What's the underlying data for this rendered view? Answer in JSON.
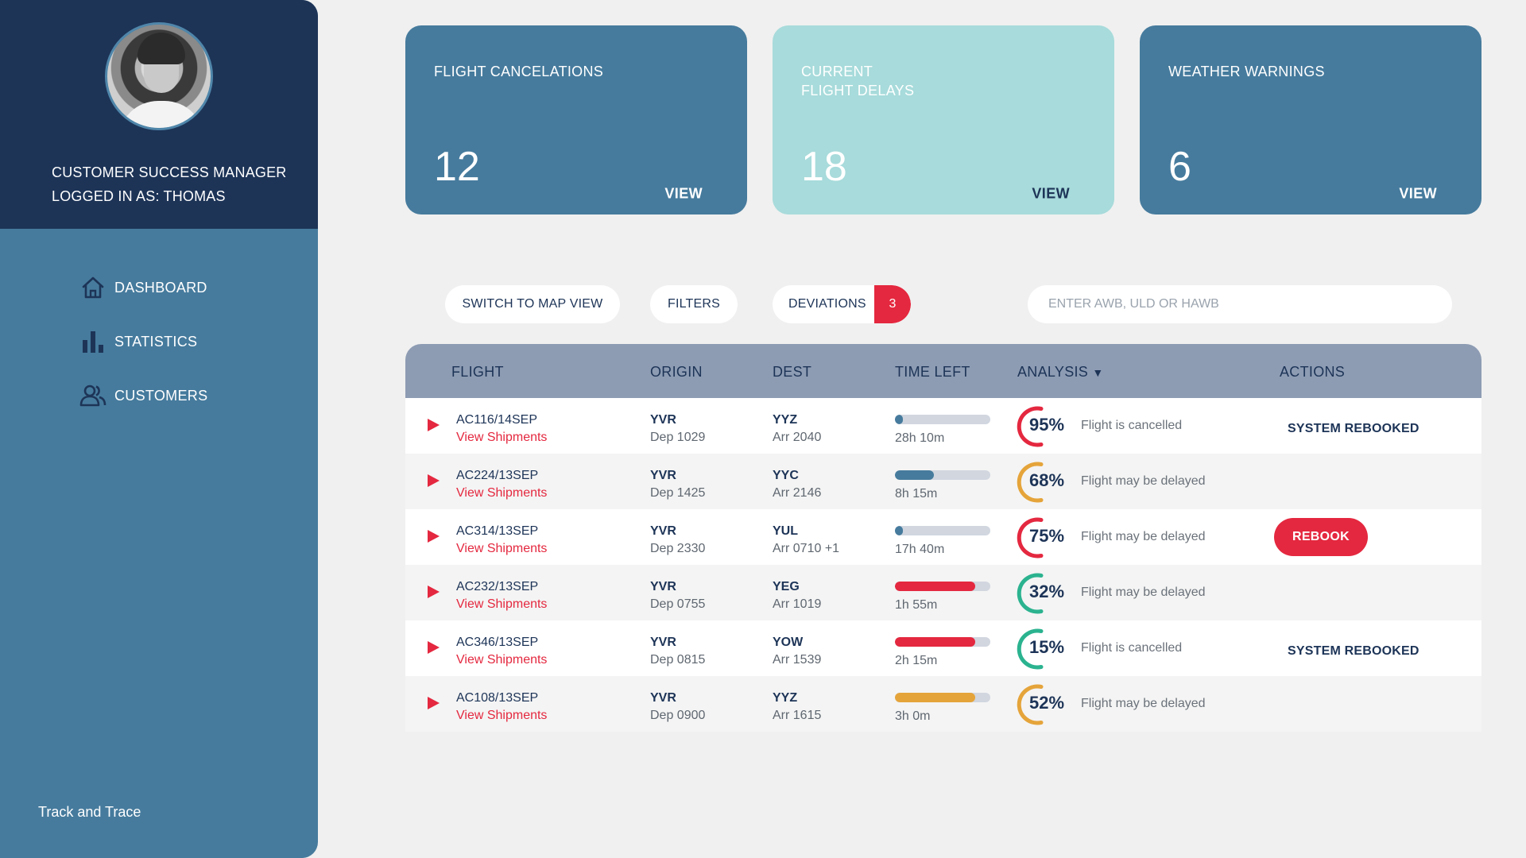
{
  "sidebar": {
    "role_line1": "CUSTOMER SUCCESS MANAGER",
    "role_line2": "LOGGED IN AS: THOMAS",
    "nav": [
      {
        "label": "DASHBOARD",
        "icon": "home-icon"
      },
      {
        "label": "STATISTICS",
        "icon": "bar-chart-icon"
      },
      {
        "label": "CUSTOMERS",
        "icon": "users-icon"
      }
    ],
    "brand": "Track and Trace"
  },
  "cards": [
    {
      "title": "FLIGHT CANCELATIONS",
      "value": "12",
      "view": "VIEW"
    },
    {
      "title": "CURRENT\nFLIGHT DELAYS",
      "value": "18",
      "view": "VIEW"
    },
    {
      "title": "WEATHER WARNINGS",
      "value": "6",
      "view": "VIEW"
    }
  ],
  "toolbar": {
    "map_view": "SWITCH TO MAP VIEW",
    "filters": "FILTERS",
    "deviations": "DEVIATIONS",
    "deviations_count": "3",
    "search_placeholder": "ENTER AWB, ULD OR HAWB"
  },
  "table": {
    "headers": {
      "flight": "FLIGHT",
      "origin": "ORIGIN",
      "dest": "DEST",
      "time_left": "TIME LEFT",
      "analysis": "ANALYSIS",
      "analysis_sort": "▼",
      "actions": "ACTIONS"
    },
    "shipments_label": "View Shipments",
    "rows": [
      {
        "flight": "AC116/14SEP",
        "origin": "YVR",
        "dep": "Dep 1029",
        "dest": "YYZ",
        "arr": "Arr 2040",
        "time_left": "28h 10m",
        "time_fraction": 0.08,
        "bar_color": "#467b9d",
        "pct": "95%",
        "pct_value": 0.95,
        "gauge_color": "#e4283f",
        "status": "Flight is cancelled",
        "action": "SYSTEM REBOOKED",
        "action_type": "text"
      },
      {
        "flight": "AC224/13SEP",
        "origin": "YVR",
        "dep": "Dep 1425",
        "dest": "YYC",
        "arr": "Arr 2146",
        "time_left": "8h 15m",
        "time_fraction": 0.41,
        "bar_color": "#467b9d",
        "pct": "68%",
        "pct_value": 0.68,
        "gauge_color": "#e5a43a",
        "status": "Flight may be delayed",
        "action": "",
        "action_type": "none"
      },
      {
        "flight": "AC314/13SEP",
        "origin": "YVR",
        "dep": "Dep 2330",
        "dest": "YUL",
        "arr": "Arr 0710 +1",
        "time_left": "17h 40m",
        "time_fraction": 0.08,
        "bar_color": "#467b9d",
        "pct": "75%",
        "pct_value": 0.75,
        "gauge_color": "#e4283f",
        "status": "Flight may be delayed",
        "action": "REBOOK",
        "action_type": "button"
      },
      {
        "flight": "AC232/13SEP",
        "origin": "YVR",
        "dep": "Dep 0755",
        "dest": "YEG",
        "arr": "Arr 1019",
        "time_left": "1h 55m",
        "time_fraction": 0.84,
        "bar_color": "#e4283f",
        "pct": "32%",
        "pct_value": 0.32,
        "gauge_color": "#2bb38f",
        "status": "Flight may be delayed",
        "action": "",
        "action_type": "none"
      },
      {
        "flight": "AC346/13SEP",
        "origin": "YVR",
        "dep": "Dep 0815",
        "dest": "YOW",
        "arr": "Arr 1539",
        "time_left": "2h 15m",
        "time_fraction": 0.84,
        "bar_color": "#e4283f",
        "pct": "15%",
        "pct_value": 0.15,
        "gauge_color": "#2bb38f",
        "status": "Flight is cancelled",
        "action": "SYSTEM REBOOKED",
        "action_type": "text"
      },
      {
        "flight": "AC108/13SEP",
        "origin": "YVR",
        "dep": "Dep 0900",
        "dest": "YYZ",
        "arr": "Arr 1615",
        "time_left": "3h 0m",
        "time_fraction": 0.84,
        "bar_color": "#e5a43a",
        "pct": "52%",
        "pct_value": 0.52,
        "gauge_color": "#e5a43a",
        "status": "Flight may be delayed",
        "action": "",
        "action_type": "none"
      }
    ]
  }
}
